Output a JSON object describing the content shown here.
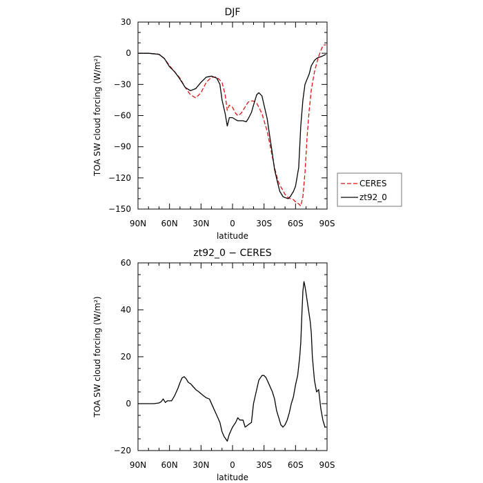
{
  "chart_data": [
    {
      "type": "line",
      "title": "DJF",
      "xlabel": "latitude",
      "ylabel": "TOA SW cloud forcing (W/m²)",
      "xlim": [
        -90,
        90
      ],
      "ylim": [
        -150,
        30
      ],
      "xticks": [
        -90,
        -60,
        -30,
        0,
        30,
        60,
        90
      ],
      "xtick_labels": [
        "90N",
        "60N",
        "30N",
        "0",
        "30S",
        "60S",
        "90S"
      ],
      "yticks": [
        30,
        0,
        -30,
        -60,
        -90,
        -120,
        -150
      ],
      "ytick_labels": [
        "30",
        "0",
        "−30",
        "−60",
        "−90",
        "−120",
        "−150"
      ],
      "grid": false,
      "legend": "right",
      "series": [
        {
          "name": "CERES",
          "color": "#e01010",
          "dash": "dashed",
          "x": [
            -90,
            -80,
            -70,
            -65,
            -60,
            -55,
            -50,
            -45,
            -40,
            -35,
            -30,
            -25,
            -20,
            -15,
            -10,
            -7,
            -5,
            -3,
            0,
            3,
            5,
            8,
            10,
            13,
            15,
            18,
            20,
            23,
            25,
            28,
            30,
            33,
            35,
            38,
            40,
            43,
            45,
            48,
            50,
            53,
            55,
            58,
            60,
            63,
            65,
            67,
            69,
            71,
            73,
            75,
            78,
            80,
            82,
            85,
            87,
            89
          ],
          "y": [
            0,
            0,
            -1,
            -5,
            -12,
            -18,
            -24,
            -33,
            -40,
            -43,
            -38,
            -28,
            -23,
            -23,
            -28,
            -40,
            -55,
            -50,
            -52,
            -58,
            -60,
            -58,
            -55,
            -50,
            -47,
            -46,
            -46,
            -48,
            -52,
            -58,
            -65,
            -75,
            -85,
            -100,
            -110,
            -122,
            -127,
            -132,
            -136,
            -139,
            -140,
            -141,
            -143,
            -145,
            -147,
            -138,
            -115,
            -80,
            -55,
            -35,
            -18,
            -10,
            -3,
            5,
            8,
            8
          ]
        },
        {
          "name": "zt92_0",
          "color": "#000000",
          "dash": "solid",
          "x": [
            -90,
            -80,
            -70,
            -65,
            -60,
            -55,
            -50,
            -45,
            -40,
            -35,
            -30,
            -25,
            -20,
            -15,
            -12,
            -10,
            -7,
            -5,
            -3,
            0,
            3,
            5,
            8,
            10,
            13,
            15,
            18,
            20,
            23,
            25,
            28,
            30,
            33,
            35,
            38,
            40,
            43,
            45,
            48,
            50,
            53,
            55,
            58,
            60,
            63,
            65,
            67,
            69,
            71,
            73,
            75,
            78,
            80,
            82,
            85,
            87,
            89
          ],
          "y": [
            0,
            0,
            -1,
            -5,
            -13,
            -18,
            -25,
            -33,
            -36,
            -34,
            -28,
            -23,
            -22,
            -24,
            -30,
            -45,
            -58,
            -70,
            -62,
            -62,
            -64,
            -65,
            -65,
            -65,
            -66,
            -63,
            -57,
            -50,
            -40,
            -38,
            -41,
            -50,
            -63,
            -77,
            -97,
            -112,
            -125,
            -133,
            -138,
            -139,
            -140,
            -138,
            -133,
            -128,
            -110,
            -70,
            -45,
            -30,
            -25,
            -20,
            -12,
            -7,
            -5,
            -4,
            -3,
            -2,
            -1
          ]
        }
      ]
    },
    {
      "type": "line",
      "title": "zt92_0 − CERES",
      "xlabel": "latitude",
      "ylabel": "TOA SW cloud forcing (W/m²)",
      "xlim": [
        -90,
        90
      ],
      "ylim": [
        -20,
        60
      ],
      "xticks": [
        -90,
        -60,
        -30,
        0,
        30,
        60,
        90
      ],
      "xtick_labels": [
        "90N",
        "60N",
        "30N",
        "0",
        "30S",
        "60S",
        "90S"
      ],
      "yticks": [
        60,
        40,
        20,
        0,
        -20
      ],
      "ytick_labels": [
        "60",
        "40",
        "20",
        "0",
        "−20"
      ],
      "grid": false,
      "series": [
        {
          "color": "#000000",
          "dash": "solid",
          "x": [
            -90,
            -80,
            -75,
            -70,
            -68,
            -66,
            -64,
            -62,
            -58,
            -55,
            -52,
            -50,
            -48,
            -46,
            -44,
            -42,
            -40,
            -38,
            -35,
            -32,
            -28,
            -25,
            -22,
            -18,
            -15,
            -12,
            -10,
            -8,
            -5,
            -3,
            0,
            3,
            5,
            7,
            10,
            12,
            15,
            18,
            20,
            23,
            25,
            28,
            30,
            32,
            35,
            38,
            40,
            42,
            44,
            46,
            48,
            50,
            52,
            54,
            56,
            58,
            60,
            62,
            63,
            64,
            65,
            66,
            67,
            68,
            69,
            70,
            71,
            72,
            73,
            74,
            75,
            76,
            78,
            80,
            82,
            84,
            86,
            88,
            89
          ],
          "y": [
            0,
            0,
            0,
            0.3,
            0.8,
            2,
            0.5,
            1.2,
            1.2,
            3.5,
            6.5,
            9,
            11,
            11.5,
            10.5,
            9,
            8.5,
            7.5,
            6,
            5,
            3.5,
            2.5,
            2,
            -2,
            -5,
            -8,
            -12,
            -14,
            -16,
            -13,
            -10,
            -8,
            -6,
            -7,
            -7,
            -10,
            -9,
            -8,
            0,
            6,
            10,
            12,
            12,
            11,
            8,
            5,
            2,
            -3,
            -6,
            -9,
            -10,
            -9,
            -7,
            -4,
            0,
            3,
            8,
            12,
            16,
            20,
            26,
            38,
            48,
            52,
            50,
            47,
            44,
            41,
            38,
            35,
            30,
            20,
            10,
            5,
            6,
            -2,
            -7,
            -10,
            -10
          ]
        }
      ]
    }
  ]
}
